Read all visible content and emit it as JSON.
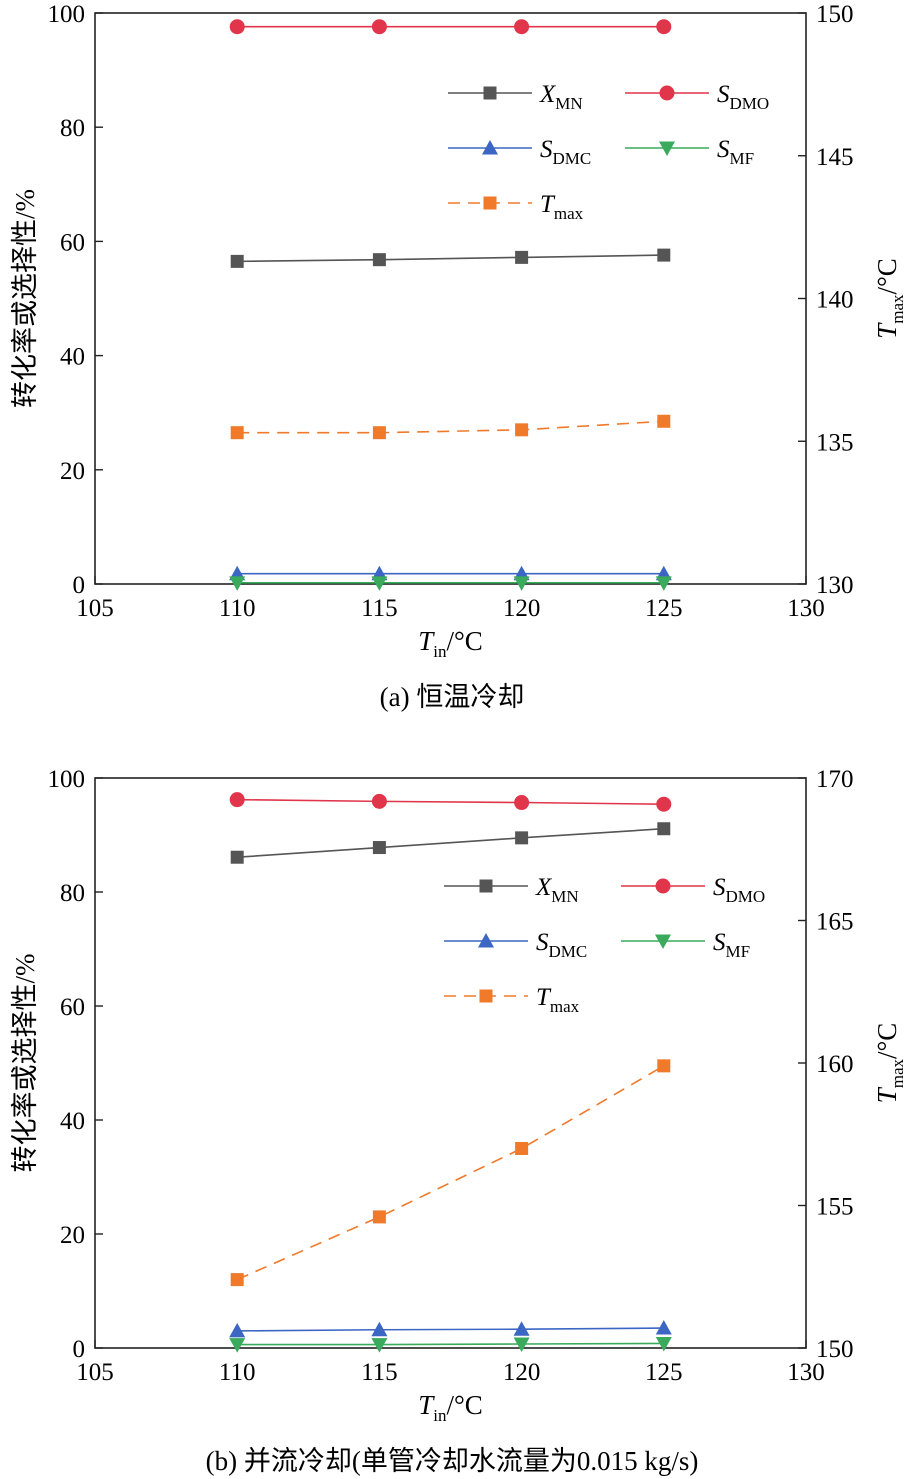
{
  "panels": [
    {
      "caption": "(a) 恒温冷却",
      "ylabel_left": "转化率或选择性/%",
      "xlabel": {
        "main": "T",
        "sub": "in",
        "unit": "/°C"
      },
      "ylabel_right": {
        "main": "T",
        "sub": "max",
        "unit": "/°C"
      }
    },
    {
      "caption": "(b) 并流冷却(单管冷却水流量为0.015 kg/s)",
      "ylabel_left": "转化率或选择性/%",
      "xlabel": {
        "main": "T",
        "sub": "in",
        "unit": "/°C"
      },
      "ylabel_right": {
        "main": "T",
        "sub": "max",
        "unit": "/°C"
      }
    }
  ],
  "legend": [
    {
      "main": "X",
      "sub": "MN",
      "color": "#555555",
      "marker": "square",
      "dash": false
    },
    {
      "main": "S",
      "sub": "DMO",
      "color": "#e0354a",
      "marker": "circle",
      "dash": false
    },
    {
      "main": "S",
      "sub": "DMC",
      "color": "#3b66c4",
      "marker": "triangle-up",
      "dash": false
    },
    {
      "main": "S",
      "sub": "MF",
      "color": "#3aaa5c",
      "marker": "triangle-down",
      "dash": false
    },
    {
      "main": "T",
      "sub": "max",
      "color": "#f07a2a",
      "marker": "square",
      "dash": true
    }
  ],
  "chart_data": [
    {
      "type": "line",
      "x": [
        110,
        115,
        120,
        125
      ],
      "xlim": [
        105,
        130
      ],
      "xticks": [
        105,
        110,
        115,
        120,
        125,
        130
      ],
      "ylim": [
        0,
        100
      ],
      "yticks": [
        0,
        20,
        40,
        60,
        80,
        100
      ],
      "y2lim": [
        130,
        150
      ],
      "y2ticks": [
        130,
        135,
        140,
        145,
        150
      ],
      "series": [
        {
          "name": "XMN",
          "axis": "left",
          "values": [
            56.5,
            56.8,
            57.2,
            57.6
          ]
        },
        {
          "name": "SDMO",
          "axis": "left",
          "values": [
            97.6,
            97.6,
            97.6,
            97.6
          ]
        },
        {
          "name": "SDMC",
          "axis": "left",
          "values": [
            1.8,
            1.8,
            1.8,
            1.8
          ]
        },
        {
          "name": "SMF",
          "axis": "left",
          "values": [
            0.2,
            0.2,
            0.2,
            0.2
          ]
        },
        {
          "name": "Tmax",
          "axis": "right",
          "values": [
            135.3,
            135.3,
            135.4,
            135.7
          ]
        }
      ]
    },
    {
      "type": "line",
      "x": [
        110,
        115,
        120,
        125
      ],
      "xlim": [
        105,
        130
      ],
      "xticks": [
        105,
        110,
        115,
        120,
        125,
        130
      ],
      "ylim": [
        0,
        100
      ],
      "yticks": [
        0,
        20,
        40,
        60,
        80,
        100
      ],
      "y2lim": [
        150,
        170
      ],
      "y2ticks": [
        150,
        155,
        160,
        165,
        170
      ],
      "series": [
        {
          "name": "XMN",
          "axis": "left",
          "values": [
            86.1,
            87.8,
            89.5,
            91.1
          ]
        },
        {
          "name": "SDMO",
          "axis": "left",
          "values": [
            96.2,
            95.9,
            95.7,
            95.4
          ]
        },
        {
          "name": "SDMC",
          "axis": "left",
          "values": [
            3.0,
            3.2,
            3.3,
            3.5
          ]
        },
        {
          "name": "SMF",
          "axis": "left",
          "values": [
            0.6,
            0.6,
            0.7,
            0.8
          ]
        },
        {
          "name": "Tmax",
          "axis": "right",
          "values": [
            152.4,
            154.6,
            157.0,
            159.9
          ]
        }
      ]
    }
  ]
}
